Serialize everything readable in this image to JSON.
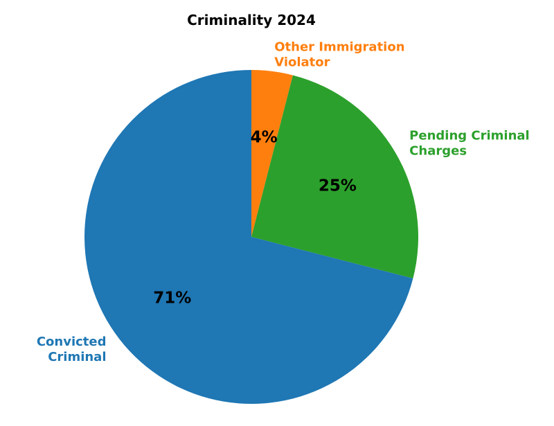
{
  "chart_data": {
    "type": "pie",
    "title": "Criminality 2024",
    "start_angle_deg": 90,
    "direction": "clockwise",
    "slices": [
      {
        "label_lines": [
          "Other Immigration",
          "Violator"
        ],
        "value": 4,
        "pct_text": "4%",
        "color": "#ff7f0e"
      },
      {
        "label_lines": [
          "Pending Criminal",
          "Charges"
        ],
        "value": 25,
        "pct_text": "25%",
        "color": "#2ca02c"
      },
      {
        "label_lines": [
          "Convicted",
          "Criminal"
        ],
        "value": 71,
        "pct_text": "71%",
        "color": "#1f77b4"
      }
    ]
  }
}
